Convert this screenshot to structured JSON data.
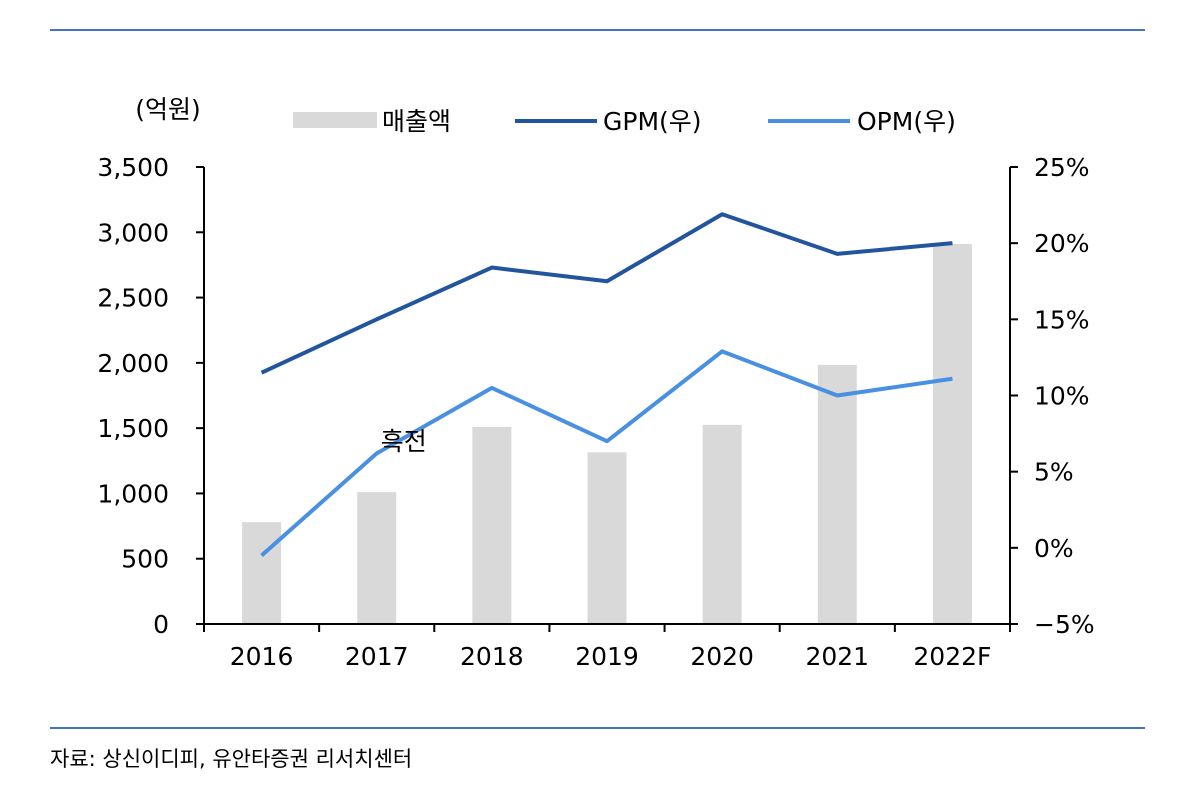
{
  "colors": {
    "rule": "#4472c4",
    "bar": "#d9d9d9",
    "gpm": "#23559c",
    "opm": "#4a90e2",
    "axis": "#000000"
  },
  "source_note": "자료: 상신이디피, 유안타증권 리서치센터",
  "chart_data": {
    "type": "bar",
    "unit_label": "(억원)",
    "categories": [
      "2016",
      "2017",
      "2018",
      "2019",
      "2020",
      "2021",
      "2022F"
    ],
    "ylim": [
      0,
      3500
    ],
    "yticks": [
      "0",
      "500",
      "1,000",
      "1,500",
      "2,000",
      "2,500",
      "3,000",
      "3,500"
    ],
    "y2lim": [
      -5,
      25
    ],
    "y2ticks": [
      "−5%",
      "0%",
      "5%",
      "10%",
      "15%",
      "20%",
      "25%"
    ],
    "grid": false,
    "legend_position": "top",
    "series": [
      {
        "name": "매출액",
        "type": "bar",
        "axis": "left",
        "values": [
          780,
          1010,
          1510,
          1315,
          1525,
          1985,
          2910
        ]
      },
      {
        "name": "GPM(우)",
        "type": "line",
        "axis": "right",
        "values": [
          11.5,
          15.0,
          18.4,
          17.5,
          21.9,
          19.3,
          20.0
        ]
      },
      {
        "name": "OPM(우)",
        "type": "line",
        "axis": "right",
        "values": [
          -0.5,
          6.2,
          10.5,
          7.0,
          12.9,
          10.0,
          11.1
        ]
      }
    ],
    "annotations": [
      {
        "text": "흑전",
        "category": "2017"
      }
    ]
  }
}
